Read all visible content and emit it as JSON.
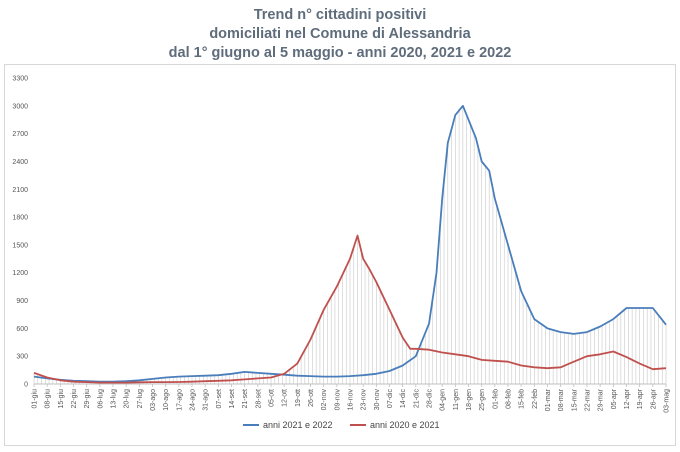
{
  "chart_data": {
    "type": "line",
    "title_lines": [
      "Trend n° cittadini positivi",
      "domiciliati nel Comune di Alessandria",
      "dal 1° giugno al 5 maggio - anni 2020, 2021 e 2022"
    ],
    "ylim": [
      0,
      3300
    ],
    "yticks": [
      0,
      300,
      600,
      900,
      1200,
      1500,
      1800,
      2100,
      2400,
      2700,
      3000,
      3300
    ],
    "xticks": [
      "01-giu",
      "08-giu",
      "15-giu",
      "22-giu",
      "29-giu",
      "06-lug",
      "13-lug",
      "20-lug",
      "27-lug",
      "03-ago",
      "10-ago",
      "17-ago",
      "24-ago",
      "31-ago",
      "07-set",
      "14-set",
      "21-set",
      "28-set",
      "05-ott",
      "12-ott",
      "19-ott",
      "26-ott",
      "02-nov",
      "09-nov",
      "16-nov",
      "23-nov",
      "30-nov",
      "07-dic",
      "14-dic",
      "21-dic",
      "28-dic",
      "04-gen",
      "11-gen",
      "18-gen",
      "25-gen",
      "01-feb",
      "08-feb",
      "15-feb",
      "22-feb",
      "01-mar",
      "08-mar",
      "15-mar",
      "22-mar",
      "29-mar",
      "05-apr",
      "12-apr",
      "19-apr",
      "26-apr",
      "03-mag"
    ],
    "grid": false,
    "legend_position": "bottom",
    "series": [
      {
        "name": "anni 2021 e 2022",
        "color": "#4a7ebb",
        "x": [
          0,
          7,
          14,
          21,
          28,
          35,
          42,
          49,
          56,
          63,
          70,
          77,
          84,
          91,
          98,
          105,
          112,
          119,
          126,
          133,
          140,
          147,
          154,
          161,
          168,
          175,
          182,
          189,
          196,
          203,
          210,
          214,
          217,
          220,
          224,
          228,
          231,
          235,
          238,
          242,
          245,
          252,
          259,
          266,
          273,
          280,
          287,
          294,
          301,
          308,
          315,
          322,
          329,
          336
        ],
        "values": [
          80,
          60,
          45,
          35,
          30,
          25,
          25,
          30,
          40,
          55,
          70,
          80,
          85,
          90,
          95,
          110,
          130,
          120,
          110,
          100,
          90,
          85,
          80,
          80,
          85,
          95,
          110,
          140,
          200,
          300,
          650,
          1200,
          2000,
          2600,
          2900,
          3000,
          2850,
          2650,
          2400,
          2300,
          2000,
          1500,
          1000,
          700,
          600,
          560,
          540,
          560,
          620,
          700,
          820,
          820,
          820,
          640
        ]
      },
      {
        "name": "anni 2020 e 2021",
        "color": "#c0504d",
        "x": [
          0,
          7,
          14,
          21,
          28,
          35,
          42,
          49,
          56,
          63,
          70,
          77,
          84,
          91,
          98,
          105,
          112,
          119,
          126,
          133,
          140,
          147,
          154,
          161,
          168,
          172,
          175,
          178,
          182,
          189,
          196,
          200,
          203,
          210,
          217,
          224,
          231,
          238,
          245,
          252,
          259,
          266,
          273,
          280,
          287,
          294,
          301,
          308,
          315,
          322,
          329,
          336
        ],
        "values": [
          120,
          70,
          40,
          25,
          20,
          15,
          15,
          15,
          18,
          20,
          20,
          22,
          25,
          30,
          35,
          40,
          50,
          60,
          70,
          110,
          220,
          480,
          800,
          1050,
          1350,
          1600,
          1350,
          1250,
          1100,
          800,
          500,
          380,
          380,
          370,
          340,
          320,
          300,
          260,
          250,
          240,
          200,
          180,
          170,
          180,
          240,
          300,
          320,
          350,
          290,
          220,
          160,
          170
        ]
      }
    ]
  }
}
